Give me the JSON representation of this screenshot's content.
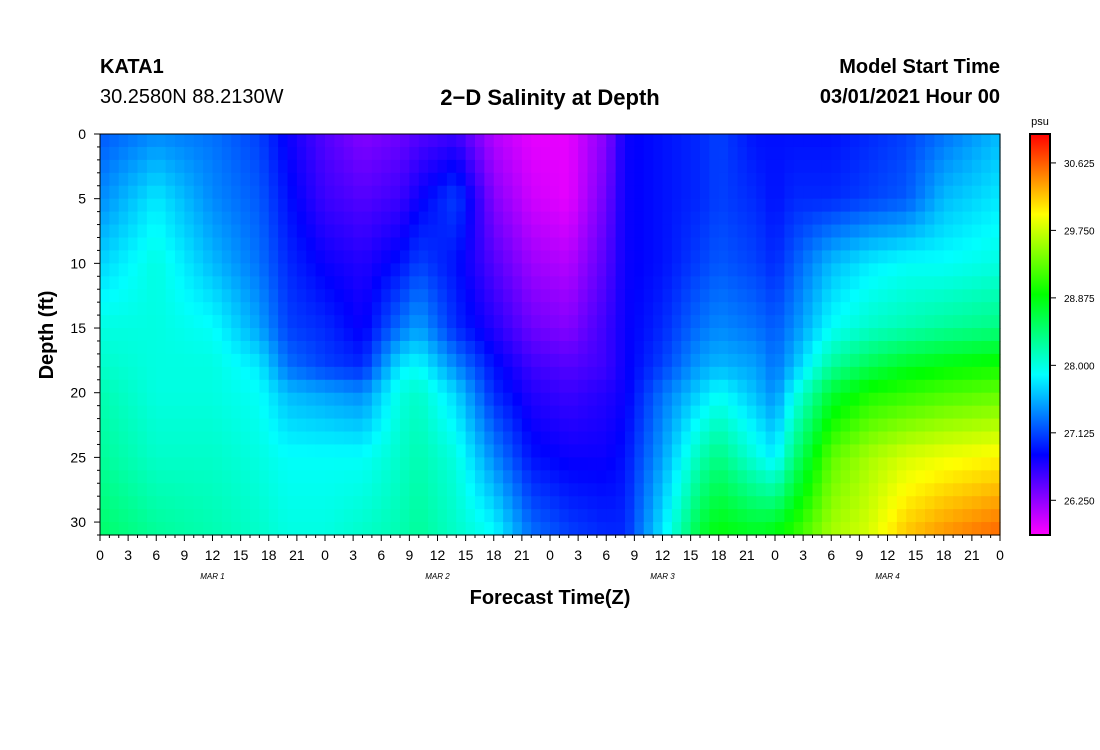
{
  "header": {
    "station_id": "KATA1",
    "coordinates": "30.2580N 88.2130W",
    "title": "2−D Salinity at Depth",
    "model_label": "Model Start Time",
    "model_time": "03/01/2021 Hour 00"
  },
  "chart_data": {
    "type": "heatmap",
    "title": "2−D Salinity at Depth",
    "xlabel": "Forecast Time(Z)",
    "ylabel": "Depth (ft)",
    "x_tick_labels": [
      "0",
      "3",
      "6",
      "9",
      "12",
      "15",
      "18",
      "21",
      "0",
      "3",
      "6",
      "9",
      "12",
      "15",
      "18",
      "21",
      "0",
      "3",
      "6",
      "9",
      "12",
      "15",
      "18",
      "21",
      "0",
      "3",
      "6",
      "9",
      "12",
      "15",
      "18",
      "21",
      "0"
    ],
    "x_hours_range": [
      0,
      96
    ],
    "date_labels": [
      {
        "label": "MAR 1",
        "hour": 12
      },
      {
        "label": "MAR 2",
        "hour": 36
      },
      {
        "label": "MAR 3",
        "hour": 60
      },
      {
        "label": "MAR 4",
        "hour": 84
      }
    ],
    "ylim": [
      0,
      31
    ],
    "y_inverted": true,
    "y_ticks": [
      0,
      5,
      10,
      15,
      20,
      25,
      30
    ],
    "colorbar": {
      "unit": "psu",
      "range": [
        25.8,
        31.0
      ],
      "tick_values": [
        26.25,
        27.125,
        28.0,
        28.875,
        29.75,
        30.625
      ],
      "tick_labels": [
        "26.250",
        "27.125",
        "28.000",
        "28.875",
        "29.750",
        "30.625"
      ],
      "colors": [
        "#ff00ff",
        "#7f00ff",
        "#0000ff",
        "#0080ff",
        "#00ffff",
        "#00ff80",
        "#00ff00",
        "#80ff00",
        "#ffff00",
        "#ff8000",
        "#ff0000"
      ]
    },
    "depths": [
      0,
      5,
      10,
      15,
      18,
      20,
      25,
      31
    ],
    "series": [
      {
        "hour": 0,
        "values": [
          27.2,
          27.4,
          27.7,
          28.0,
          28.1,
          28.2,
          28.3,
          28.5
        ]
      },
      {
        "hour": 6,
        "values": [
          27.4,
          27.8,
          28.0,
          28.0,
          28.0,
          28.0,
          28.1,
          28.3
        ]
      },
      {
        "hour": 12,
        "values": [
          27.3,
          27.4,
          27.6,
          27.9,
          28.0,
          28.0,
          28.1,
          28.2
        ]
      },
      {
        "hour": 17,
        "values": [
          27.1,
          27.2,
          27.3,
          27.5,
          27.8,
          27.9,
          28.0,
          28.1
        ]
      },
      {
        "hour": 20,
        "values": [
          26.8,
          26.9,
          27.0,
          27.1,
          27.3,
          27.6,
          27.9,
          28.0
        ]
      },
      {
        "hour": 24,
        "values": [
          26.5,
          26.6,
          26.8,
          27.0,
          27.1,
          27.5,
          27.9,
          28.0
        ]
      },
      {
        "hour": 28,
        "values": [
          26.3,
          26.5,
          26.7,
          26.8,
          27.0,
          27.4,
          27.9,
          28.1
        ]
      },
      {
        "hour": 32,
        "values": [
          26.4,
          26.6,
          26.9,
          27.3,
          27.8,
          28.0,
          28.1,
          28.2
        ]
      },
      {
        "hour": 34,
        "values": [
          26.5,
          26.8,
          27.1,
          27.5,
          27.9,
          28.1,
          28.2,
          28.3
        ]
      },
      {
        "hour": 38,
        "values": [
          26.6,
          27.1,
          26.9,
          27.0,
          27.4,
          27.7,
          28.0,
          28.1
        ]
      },
      {
        "hour": 42,
        "values": [
          26.1,
          26.3,
          26.5,
          26.7,
          26.9,
          27.0,
          27.4,
          27.9
        ]
      },
      {
        "hour": 46,
        "values": [
          25.9,
          26.0,
          26.2,
          26.4,
          26.6,
          26.7,
          26.9,
          27.3
        ]
      },
      {
        "hour": 50,
        "values": [
          25.9,
          25.9,
          26.1,
          26.3,
          26.5,
          26.6,
          26.8,
          27.1
        ]
      },
      {
        "hour": 54,
        "values": [
          26.3,
          26.4,
          26.5,
          26.6,
          26.6,
          26.7,
          26.8,
          27.0
        ]
      },
      {
        "hour": 56,
        "values": [
          26.8,
          26.8,
          26.8,
          26.8,
          26.8,
          26.8,
          26.9,
          27.0
        ]
      },
      {
        "hour": 60,
        "values": [
          26.9,
          26.9,
          26.9,
          27.0,
          27.1,
          27.3,
          27.5,
          27.8
        ]
      },
      {
        "hour": 64,
        "values": [
          27.0,
          27.0,
          27.1,
          27.3,
          27.5,
          27.7,
          28.2,
          28.7
        ]
      },
      {
        "hour": 66,
        "values": [
          27.1,
          27.1,
          27.2,
          27.4,
          27.6,
          27.9,
          28.4,
          28.9
        ]
      },
      {
        "hour": 70,
        "values": [
          26.9,
          27.0,
          27.1,
          27.3,
          27.5,
          27.6,
          28.0,
          28.8
        ]
      },
      {
        "hour": 72,
        "values": [
          26.9,
          26.9,
          27.0,
          27.2,
          27.3,
          27.4,
          27.8,
          28.9
        ]
      },
      {
        "hour": 74,
        "values": [
          26.9,
          27.0,
          27.2,
          27.4,
          27.6,
          27.9,
          28.4,
          29.1
        ]
      },
      {
        "hour": 78,
        "values": [
          26.9,
          27.0,
          27.6,
          27.9,
          28.3,
          28.7,
          29.3,
          29.6
        ]
      },
      {
        "hour": 82,
        "values": [
          27.0,
          27.1,
          27.8,
          28.1,
          28.6,
          29.0,
          29.6,
          29.8
        ]
      },
      {
        "hour": 86,
        "values": [
          27.1,
          27.2,
          27.9,
          28.2,
          28.8,
          29.1,
          29.8,
          30.2
        ]
      },
      {
        "hour": 90,
        "values": [
          27.3,
          27.6,
          27.9,
          28.3,
          28.9,
          29.2,
          29.9,
          30.4
        ]
      },
      {
        "hour": 96,
        "values": [
          27.6,
          27.8,
          28.0,
          28.4,
          29.0,
          29.3,
          30.0,
          30.6
        ]
      }
    ]
  }
}
